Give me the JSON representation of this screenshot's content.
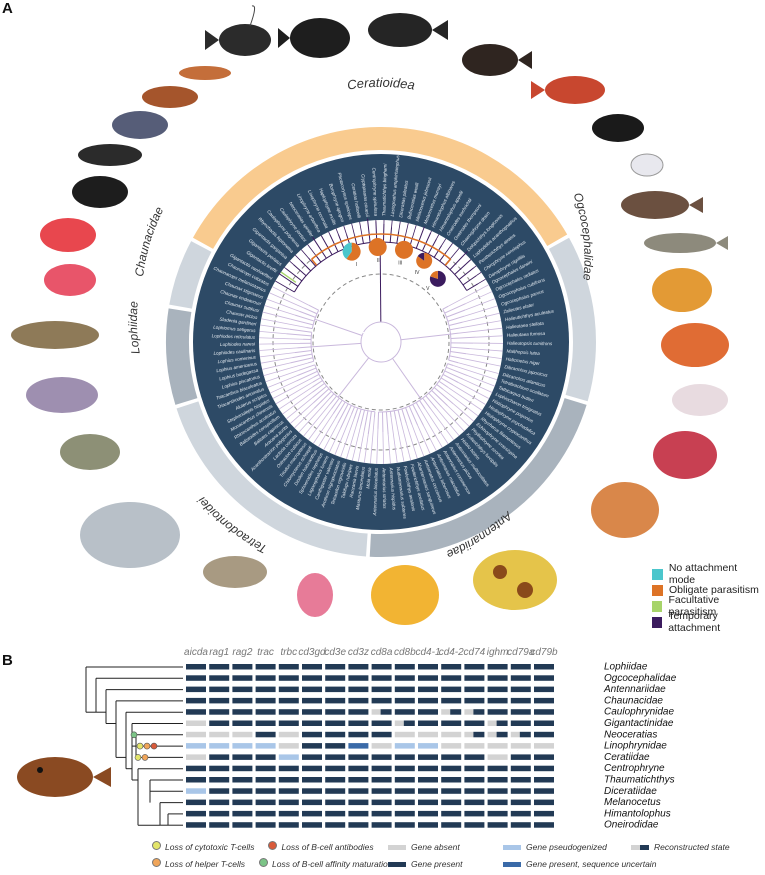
{
  "panel_a": {
    "letter": "A",
    "clades": [
      {
        "id": "ceratioidea",
        "label": "Ceratioidea",
        "color": "#f9cb8f",
        "start": -61,
        "end": 60
      },
      {
        "id": "ogcocephalidae",
        "label": "Ogcocephalidae",
        "color": "#cfd6dd",
        "start": 61,
        "end": 106
      },
      {
        "id": "antennariidae",
        "label": "Antennariidae",
        "color": "#a9b3bd",
        "start": 107,
        "end": 183
      },
      {
        "id": "tetraodontoidei",
        "label": "Tetraodontoidei",
        "color": "#cfd6dd",
        "start": 184,
        "end": 252
      },
      {
        "id": "lophiidae",
        "label": "Lophiidae",
        "color": "#a9b3bd",
        "start": 253,
        "end": 279
      },
      {
        "id": "chaunacidae",
        "label": "Chaunacidae",
        "color": "#cfd6dd",
        "start": 280,
        "end": 298
      }
    ],
    "tips_ceratioidea": [
      "Gigantactis vanhoeffeni",
      "Gigantactis kreffti",
      "Gigantactis perlatus",
      "Gigantactis gargantua",
      "Rhynchactis leptonema",
      "Caulophryne polynema",
      "Caulophryne jordani",
      "Neoceratias spinifer",
      "Linophryne arborifera",
      "Linophryne coronata",
      "Haplophryne mollis",
      "Borophryne apogon",
      "Photocorynus spiniceps",
      "Ceratias holboelli",
      "Cryptopsaras couesii",
      "Centrophryne spinulosa",
      "Thaumatichthys binghami",
      "Lasiognathus amphirhamphus",
      "Diceratias pileatus",
      "Bufoceratias wedli",
      "Melanocetus johnsonii",
      "Melanocetus murrayi",
      "Himantolophus albinares",
      "Himantolophus appelii",
      "Oneirodes eschrichtii",
      "Oneirodes thompsoni",
      "Chaenophryne draco",
      "Dolopichthys longicornis",
      "Lophodolos acanthognathus",
      "Pentherichthys atratus",
      "Chirophryne xenolophus",
      "Danaphryne nigrifilis"
    ],
    "tips_ogcocephalidae": [
      "Ogcocephalus darwini",
      "Ogcocephalus radiatus",
      "Ogcocephalus cubifrons",
      "Ogcocephalus parvus",
      "Zalieutes elater",
      "Halieutichthys aculeatus",
      "Halieutaea stellata",
      "Halieutaea fumosa",
      "Halieutopsis tumifrons",
      "Malthopsis lutea",
      "Halicmetus niger",
      "Dibranchus japonicus",
      "Dibranchus atlanticus"
    ],
    "tips_antennariidae": [
      "Tetrabrachium ocellatum",
      "Tathicarpus butleri",
      "Lophiocharon trisignatus",
      "Histiophryne pogonius",
      "Histiophryne psychedelica",
      "Histiophryne cryptacanthus",
      "Rhycherus filamentosus",
      "Echinophryne crassispina",
      "Phyllophryne scortea",
      "Kuiterichthys furcipilis",
      "Histrio histrio",
      "Antennarius multiocellatus",
      "Antennarius pictus",
      "Antennarius commerson",
      "Antennarius maculatus",
      "Antennatus tuberosus",
      "Antennatus coccineus",
      "Abantennarius sanguineus",
      "Fowlerichthys ocellatus",
      "Fowlerichthys avalonis",
      "Nudiantennarius subteres",
      "Antennarius hispidus",
      "Antennarius striatus",
      "Antennarius biocellatus"
    ],
    "tips_tetraodontoidei": [
      "Mola mola",
      "Masturus lanceolatus",
      "Ranzania laevis",
      "Takifugu rubripes",
      "Tetraodon nigroviridis",
      "Arothron nigropunctatus",
      "Canthigaster valentini",
      "Lagocephalus lunaris",
      "Sphoeroides nephelus",
      "Diodon holocanthus",
      "Chilomycterus schoepfi",
      "Triodon macropterus",
      "Ostracion cubicus",
      "Lactoria cornuta",
      "Acanthostracion polygonius",
      "Aracana aurita",
      "Balistes capriscus",
      "Balistoides conspicillum",
      "Rhinecanthus aculeatus",
      "Monacanthus chinensis",
      "Stephanolepis hispidus",
      "Aluterus scriptus",
      "Triacanthodes anomalus",
      "Triacanthus biaculeatus"
    ],
    "tips_lophiidae": [
      "Lophius piscatorius",
      "Lophius budegassa",
      "Lophius americanus",
      "Lophius vomerinus",
      "Lophiodes caulinaris",
      "Lophiodes naresi",
      "Lophiodes reticulatus",
      "Lophiomus setigerus",
      "Sladenia gardineri"
    ],
    "tips_chaunacidae": [
      "Chaunax pictus",
      "Chaunax suttkusi",
      "Chaunax endeavouri",
      "Chaunax stigmaeus",
      "Chaunacops melanostomus",
      "Chaunacops coloratus"
    ],
    "legend": [
      {
        "label": "No attachment mode",
        "color": "#4bc6cc"
      },
      {
        "label": "Obligate parasitism",
        "color": "#dd7326"
      },
      {
        "label": "Facultative parasitism",
        "color": "#a7d46a"
      },
      {
        "label": "Temporary attachment",
        "color": "#3b1b5e"
      }
    ],
    "node_labels": [
      "I",
      "II",
      "III",
      "IV",
      "V"
    ]
  },
  "panel_b": {
    "letter": "B",
    "genes": [
      "aicda",
      "rag1",
      "rag2",
      "trac",
      "trbc",
      "cd3gd",
      "cd3e",
      "cd3z",
      "cd8a",
      "cd8b",
      "cd4-1",
      "cd4-2",
      "cd74",
      "ighm",
      "cd79a",
      "cd79b"
    ],
    "families": [
      "Lophiidae",
      "Ogcocephalidae",
      "Antennariidae",
      "Chaunacidae",
      "Caulophrynidae",
      "Gigantactinidae",
      "Neoceratias",
      "Linophrynidae",
      "Ceratiidae",
      "Centrophryne",
      "Thaumatichthys",
      "Diceratiidae",
      "Melanocetus",
      "Himantolophus",
      "Oneirodidae"
    ],
    "states": [
      "PPPPPPPPPPPPPPPP",
      "PPPPPPPPPPPPPPPP",
      "PPPPPPPPPPPPPPPP",
      "PPPPPPPPPPPPPPPP",
      "PPPPPPPPRPPRRPPP",
      "APPPPPPPPRPPPRPP",
      "AAAPAPPPPAAARRRP",
      "LLLLAPPUALLAAAAA",
      "APPPLPPPPPPPPAPP",
      "PPPPPPPPPPPPPPPP",
      "PPPPPPPPPPPPPPPP",
      "LPPPPPPPPPPPPPPP",
      "PPPPPPPPPPPPPPPP",
      "PPPPPPPPPPPPPPPP",
      "PPPPPPPPPPPPPPPP"
    ],
    "colors": {
      "present": "#223a55",
      "absent": "#d3d3d3",
      "pseudo": "#a9c6e8",
      "uncertain": "#3a6aa8"
    },
    "legend_losses": [
      "Loss of cytotoxic T-cells",
      "Loss of B-cell antibodies",
      "Loss of helper T-cells",
      "Loss of B-cell affinity maturation"
    ],
    "legend_states": [
      "Gene absent",
      "Gene pseudogenized",
      "Reconstructed state",
      "Gene present",
      "Gene present, sequence uncertain"
    ],
    "loss_colors": [
      "#e3e56a",
      "#d85a3a",
      "#f0a55a",
      "#7cc487"
    ]
  }
}
